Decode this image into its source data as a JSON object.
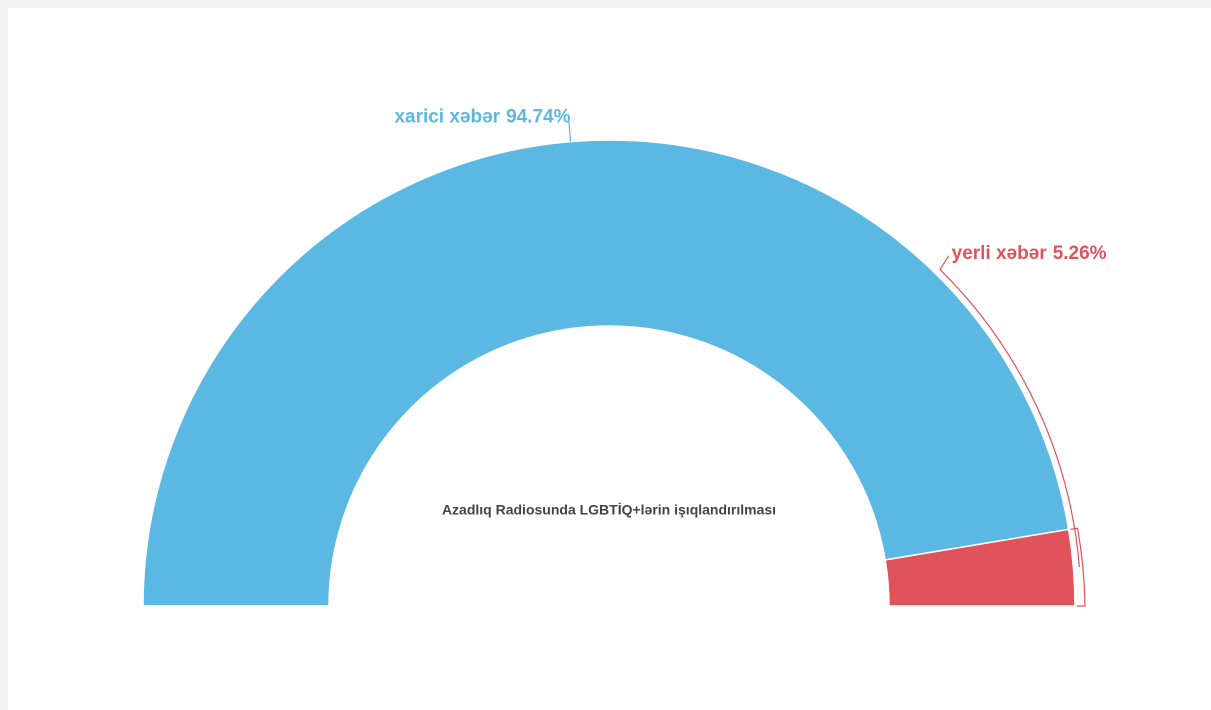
{
  "chart_data": {
    "type": "pie",
    "half": true,
    "title": "Azadlıq Radiosunda LGBTİQ+lərin işıqlandırılması",
    "categories": [
      "xarici xəbər",
      "yerli xəbər"
    ],
    "values": [
      94.74,
      5.26
    ],
    "value_labels": [
      "94.74%",
      "5.26%"
    ],
    "colors": [
      "#5bb8e2",
      "#e0535a"
    ]
  }
}
